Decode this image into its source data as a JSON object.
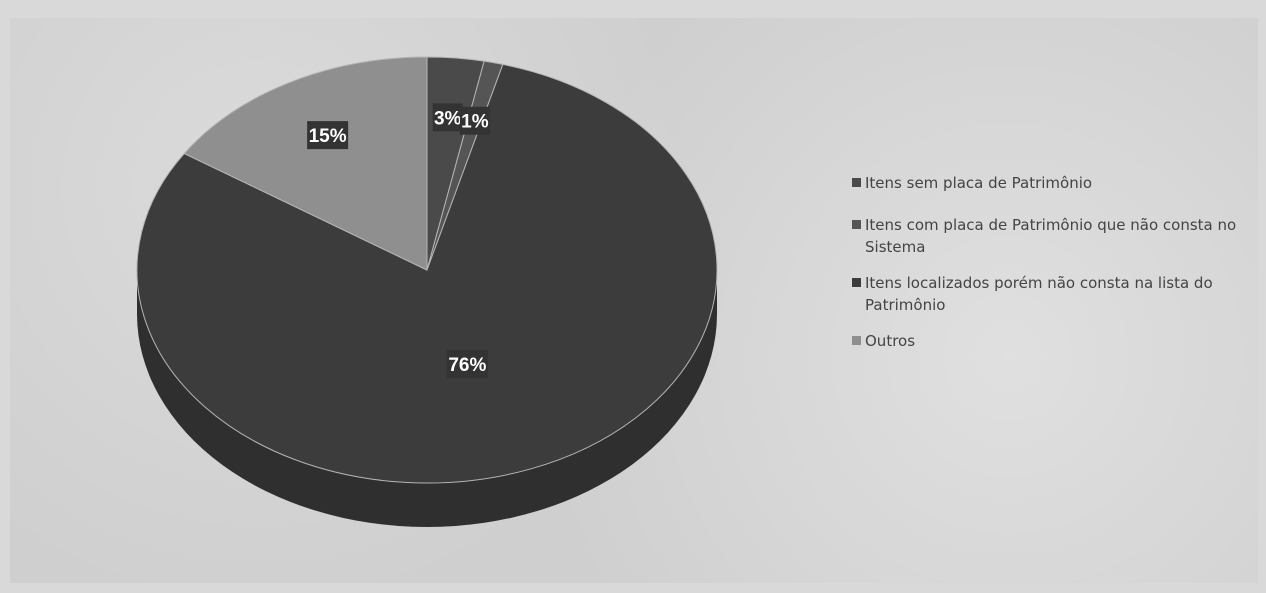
{
  "chart_data": {
    "type": "pie",
    "categories": [
      "Itens sem placa de Patrimônio",
      "Itens com placa de Patrimônio que não consta no Sistema",
      "Itens localizados porém não consta na lista do Patrimônio",
      "Outros"
    ],
    "values": [
      3,
      1,
      76,
      15
    ],
    "data_labels": [
      "3%",
      "1%",
      "76%",
      "15%"
    ],
    "colors": [
      "#4a4a4a",
      "#555555",
      "#3c3c3c",
      "#8f8f8f"
    ],
    "legend_position": "right",
    "style": "3d"
  }
}
